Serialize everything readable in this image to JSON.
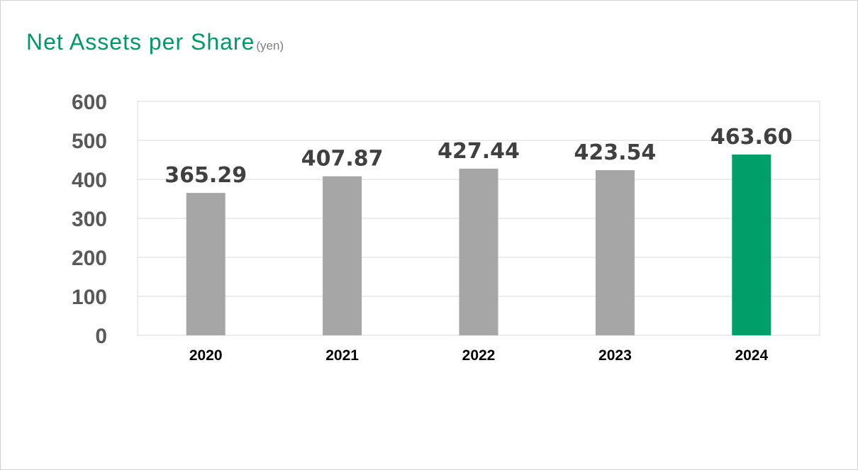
{
  "chart_data": {
    "type": "bar",
    "title": "Net Assets per Share",
    "unit": "(yen)",
    "xlabel": "",
    "ylabel": "",
    "categories": [
      "2020",
      "2021",
      "2022",
      "2023",
      "2024"
    ],
    "values": [
      365.29,
      407.87,
      427.44,
      423.54,
      463.6
    ],
    "data_labels": [
      "365.29",
      "407.87",
      "427.44",
      "423.54",
      "463.60"
    ],
    "yticks": [
      "0",
      "100",
      "200",
      "300",
      "400",
      "500",
      "600"
    ],
    "ylim": [
      0,
      600
    ],
    "grid": true,
    "legend": "none",
    "colors": {
      "bar": "#a6a6a6",
      "highlight_bar": "#009e68",
      "title": "#009966",
      "unit": "#7f7f7f",
      "gridline": "#d9d9d9"
    },
    "highlight_category": "2024"
  }
}
